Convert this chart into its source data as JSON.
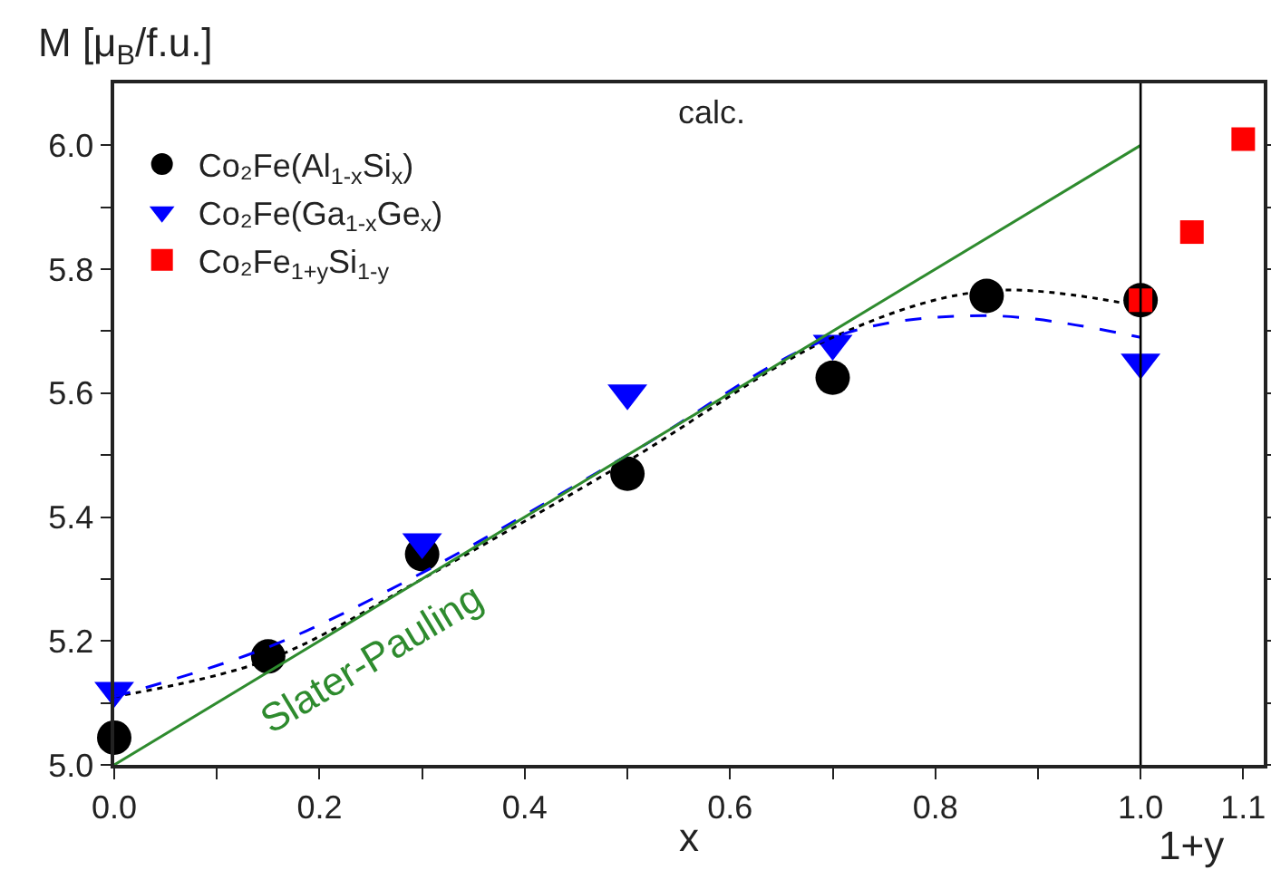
{
  "chart_data": {
    "type": "scatter",
    "ylabel": "M [μ$_{B}$/f.u.]",
    "xlabel": "x",
    "annotations": [
      "calc.",
      "1+y",
      "Slater-Pauling"
    ],
    "xlim": [
      0,
      1.12
    ],
    "xticks": [
      {
        "value": 0,
        "label": "0.0"
      },
      {
        "value": 0.1,
        "label": null
      },
      {
        "value": 0.2,
        "label": "0.2"
      },
      {
        "value": 0.3,
        "label": null
      },
      {
        "value": 0.4,
        "label": "0.4"
      },
      {
        "value": 0.5,
        "label": null
      },
      {
        "value": 0.6,
        "label": "0.6"
      },
      {
        "value": 0.7,
        "label": null
      },
      {
        "value": 0.8,
        "label": "0.8"
      },
      {
        "value": 0.9,
        "label": null
      },
      {
        "value": 1,
        "label": "1.0"
      },
      {
        "value": 1.1,
        "label": "1.1"
      }
    ],
    "ylim": [
      5,
      6.1
    ],
    "yticks": [
      {
        "value": 5,
        "label": "5.0"
      },
      {
        "value": 5.1,
        "label": null
      },
      {
        "value": 5.2,
        "label": "5.2"
      },
      {
        "value": 5.3,
        "label": null
      },
      {
        "value": 5.4,
        "label": "5.4"
      },
      {
        "value": 5.5,
        "label": null
      },
      {
        "value": 5.6,
        "label": "5.6"
      },
      {
        "value": 5.7,
        "label": null
      },
      {
        "value": 5.8,
        "label": "5.8"
      },
      {
        "value": 5.9,
        "label": null
      },
      {
        "value": 6,
        "label": "6.0"
      }
    ],
    "grid": false,
    "legend": "top left",
    "ref_lines": [
      {
        "axis": "x",
        "value": 1,
        "color": "#000000"
      }
    ],
    "series": [
      {
        "name": "Co₂Fe(Al$_{1-x}$Si$_{x}$)",
        "marker": "circle",
        "color": "#000000",
        "x": [
          0,
          0.15,
          0.3,
          0.5,
          0.7,
          0.85,
          1
        ],
        "values": [
          5.044,
          5.175,
          5.34,
          5.47,
          5.625,
          5.757,
          5.75
        ]
      },
      {
        "name": "Co₂Fe(Ga$_{1-x}$Ge$_{x}$)",
        "marker": "triangle",
        "color": "#0000ff",
        "x": [
          0,
          0.3,
          0.5,
          0.7,
          1
        ],
        "values": [
          5.12,
          5.36,
          5.6,
          5.68,
          5.65
        ]
      },
      {
        "type": "line",
        "line_style": "dotted",
        "color": "#000000",
        "x": [
          0,
          0.15,
          0.3,
          0.5,
          0.7,
          0.85,
          1
        ],
        "values": [
          5.11,
          5.17,
          5.3,
          5.49,
          5.69,
          5.765,
          5.74
        ]
      },
      {
        "type": "line",
        "line_style": "dashed",
        "color": "#0000ff",
        "x": [
          0,
          0.15,
          0.3,
          0.5,
          0.7,
          0.85,
          1
        ],
        "values": [
          5.11,
          5.19,
          5.31,
          5.5,
          5.69,
          5.725,
          5.69
        ]
      },
      {
        "type": "line",
        "line_style": "solid",
        "color": "#2e8b2e",
        "x": [
          0,
          1
        ],
        "values": [
          5,
          6
        ]
      },
      {
        "name": "Co₂Fe$_{1+y}$Si$_{1-y}$",
        "marker": "square",
        "color": "#ff0000",
        "x": [
          1,
          1.05,
          1.1
        ],
        "values": [
          5.75,
          5.86,
          6.01
        ]
      }
    ]
  }
}
